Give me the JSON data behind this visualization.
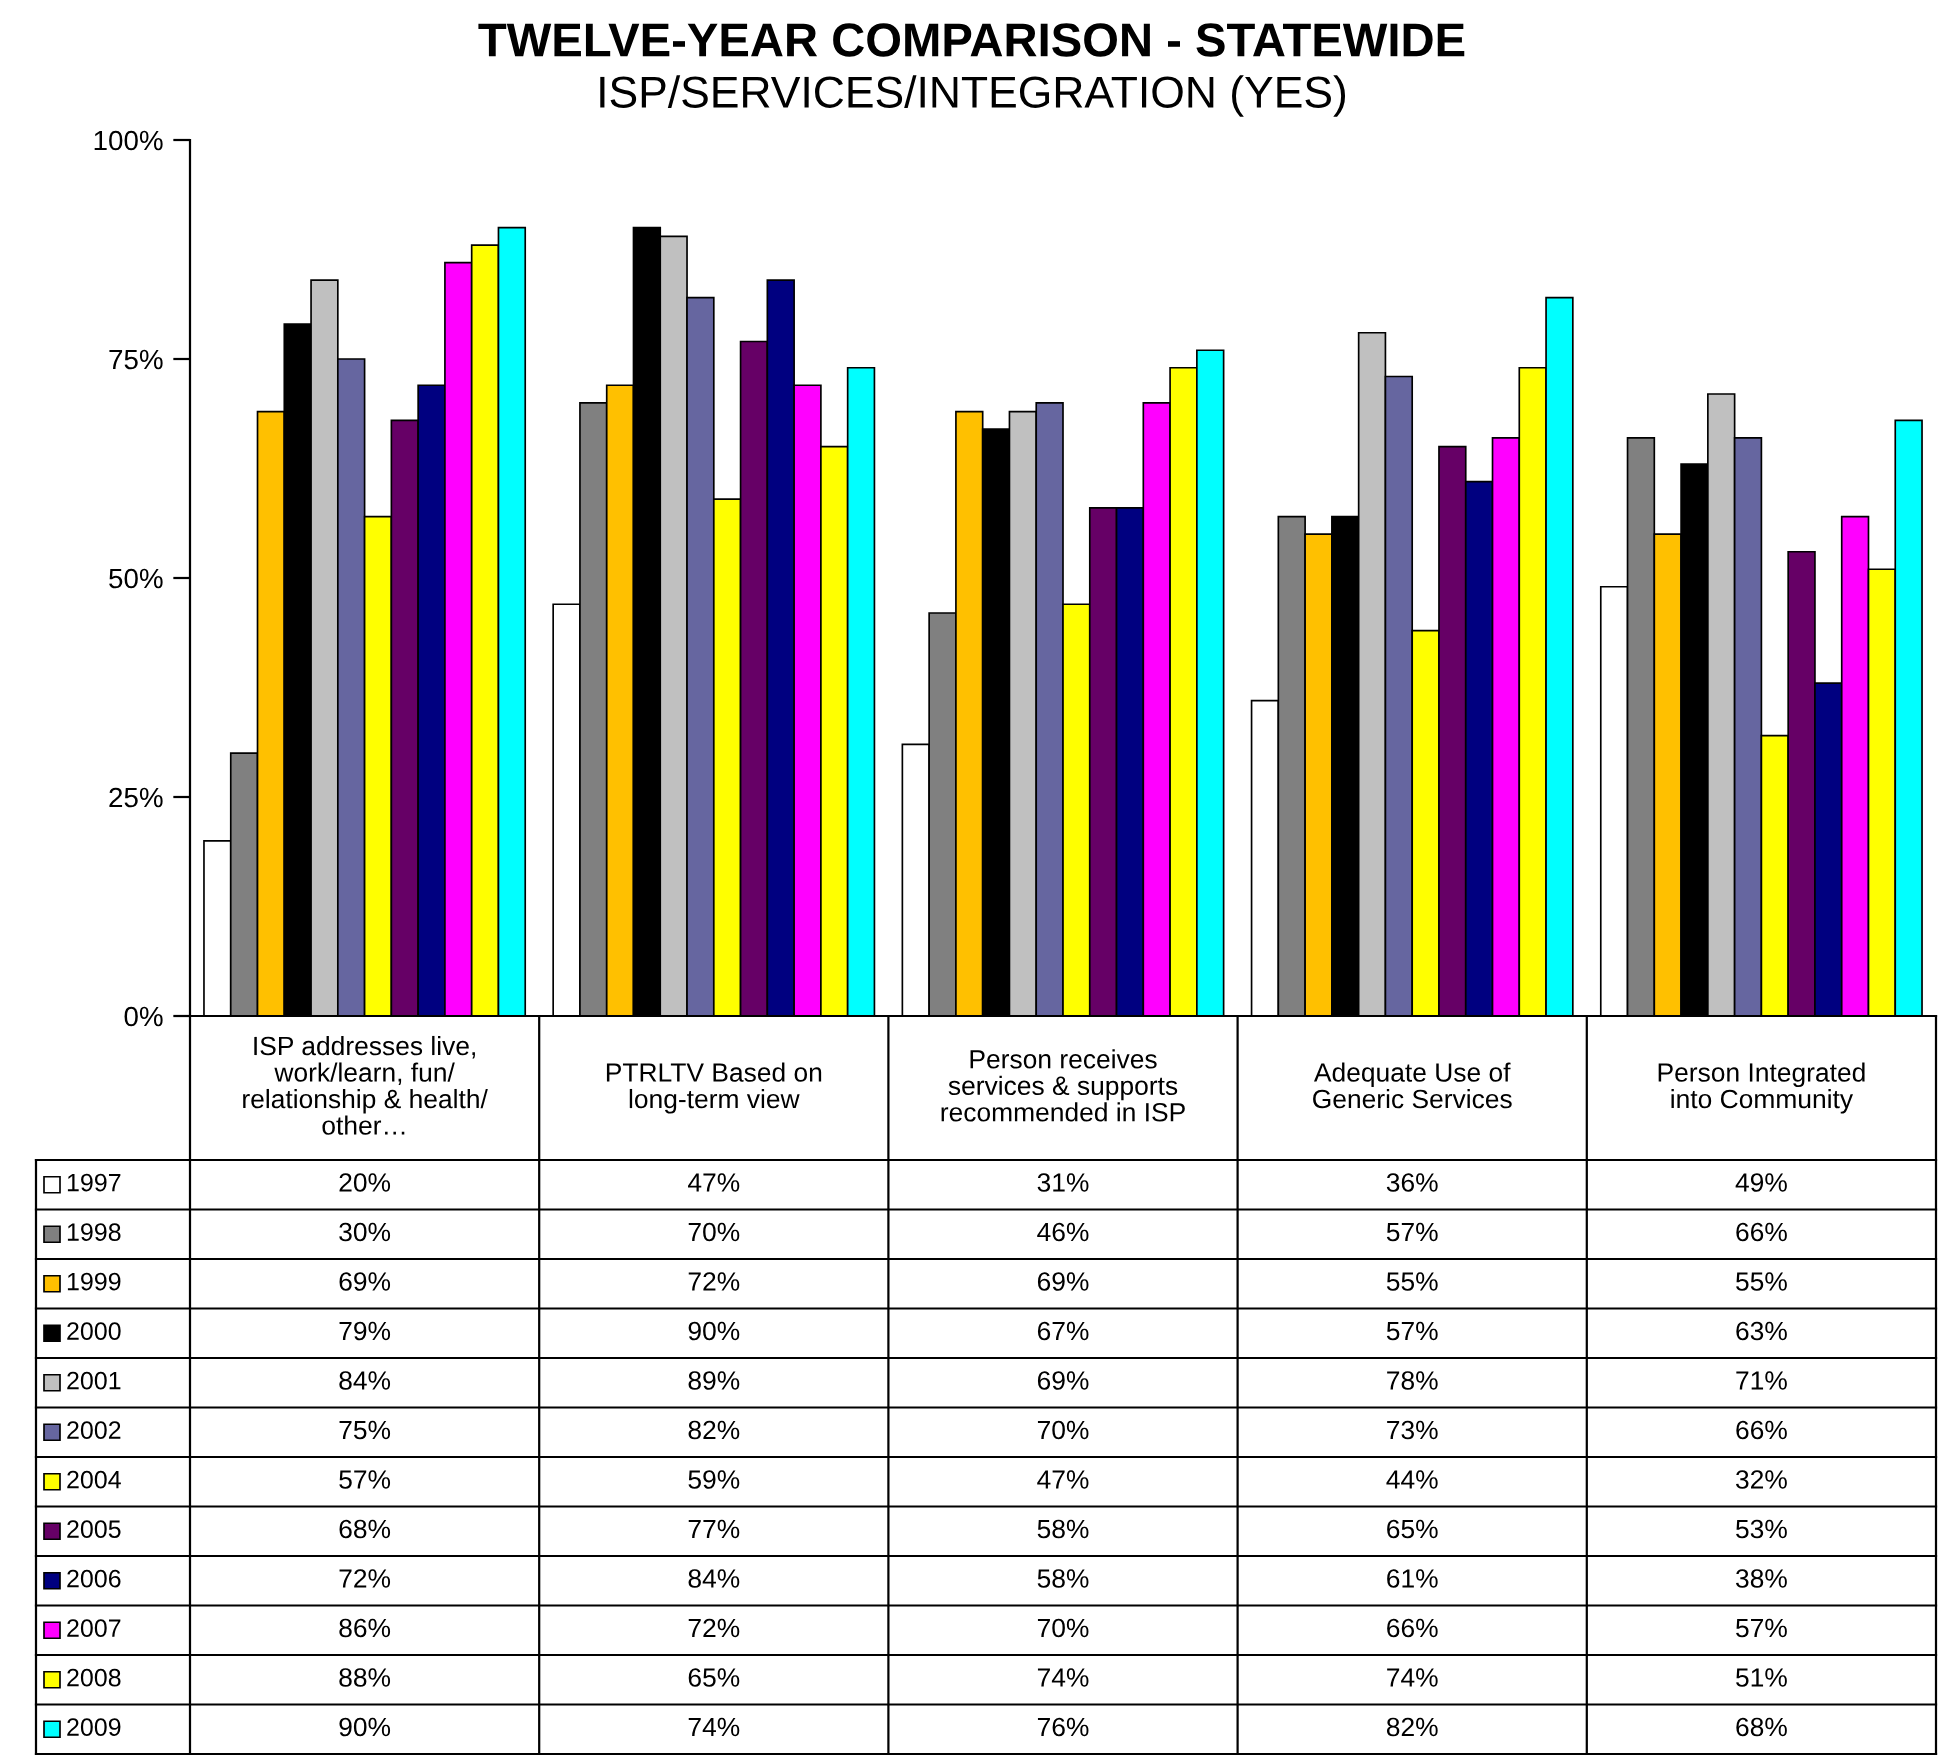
{
  "chart_data": {
    "type": "bar",
    "title": "TWELVE-YEAR COMPARISON - STATEWIDE",
    "subtitle": "ISP/SERVICES/INTEGRATION (YES)",
    "categories": [
      "ISP addresses live,\nwork/learn, fun/\nrelationship & health/\nother…",
      "PTRLTV Based on\nlong-term view",
      "Person receives\nservices & supports\nrecommended in ISP",
      "Adequate Use of\nGeneric Services",
      "Person Integrated\ninto Community"
    ],
    "ylim": [
      0,
      100
    ],
    "yticks": [
      {
        "value": 0,
        "label": "0%"
      },
      {
        "value": 25,
        "label": "25%"
      },
      {
        "value": 50,
        "label": "50%"
      },
      {
        "value": 75,
        "label": "75%"
      },
      {
        "value": 100,
        "label": "100%"
      }
    ],
    "grid": false,
    "legend": "left",
    "series": [
      {
        "name": "1997",
        "color": "#ffffff",
        "values": [
          20,
          47,
          31,
          36,
          49
        ],
        "value_labels": [
          "20%",
          "47%",
          "31%",
          "36%",
          "49%"
        ]
      },
      {
        "name": "1998",
        "color": "#808080",
        "values": [
          30,
          70,
          46,
          57,
          66
        ],
        "value_labels": [
          "30%",
          "70%",
          "46%",
          "57%",
          "66%"
        ]
      },
      {
        "name": "1999",
        "color": "#ffc000",
        "values": [
          69,
          72,
          69,
          55,
          55
        ],
        "value_labels": [
          "69%",
          "72%",
          "69%",
          "55%",
          "55%"
        ]
      },
      {
        "name": "2000",
        "color": "#000000",
        "values": [
          79,
          90,
          67,
          57,
          63
        ],
        "value_labels": [
          "79%",
          "90%",
          "67%",
          "57%",
          "63%"
        ]
      },
      {
        "name": "2001",
        "color": "#c0c0c0",
        "values": [
          84,
          89,
          69,
          78,
          71
        ],
        "value_labels": [
          "84%",
          "89%",
          "69%",
          "78%",
          "71%"
        ]
      },
      {
        "name": "2002",
        "color": "#6666a0",
        "values": [
          75,
          82,
          70,
          73,
          66
        ],
        "value_labels": [
          "75%",
          "82%",
          "70%",
          "73%",
          "66%"
        ]
      },
      {
        "name": "2004",
        "color": "#ffff00",
        "values": [
          57,
          59,
          47,
          44,
          32
        ],
        "value_labels": [
          "57%",
          "59%",
          "47%",
          "44%",
          "32%"
        ]
      },
      {
        "name": "2005",
        "color": "#660066",
        "values": [
          68,
          77,
          58,
          65,
          53
        ],
        "value_labels": [
          "68%",
          "77%",
          "58%",
          "65%",
          "53%"
        ]
      },
      {
        "name": "2006",
        "color": "#000080",
        "values": [
          72,
          84,
          58,
          61,
          38
        ],
        "value_labels": [
          "72%",
          "84%",
          "58%",
          "61%",
          "38%"
        ]
      },
      {
        "name": "2007",
        "color": "#ff00ff",
        "values": [
          86,
          72,
          70,
          66,
          57
        ],
        "value_labels": [
          "86%",
          "72%",
          "70%",
          "66%",
          "57%"
        ]
      },
      {
        "name": "2008",
        "color": "#ffff00",
        "values": [
          88,
          65,
          74,
          74,
          51
        ],
        "value_labels": [
          "88%",
          "65%",
          "74%",
          "74%",
          "51%"
        ]
      },
      {
        "name": "2009",
        "color": "#00ffff",
        "values": [
          90,
          74,
          76,
          82,
          68
        ],
        "value_labels": [
          "90%",
          "74%",
          "76%",
          "82%",
          "68%"
        ]
      }
    ]
  }
}
